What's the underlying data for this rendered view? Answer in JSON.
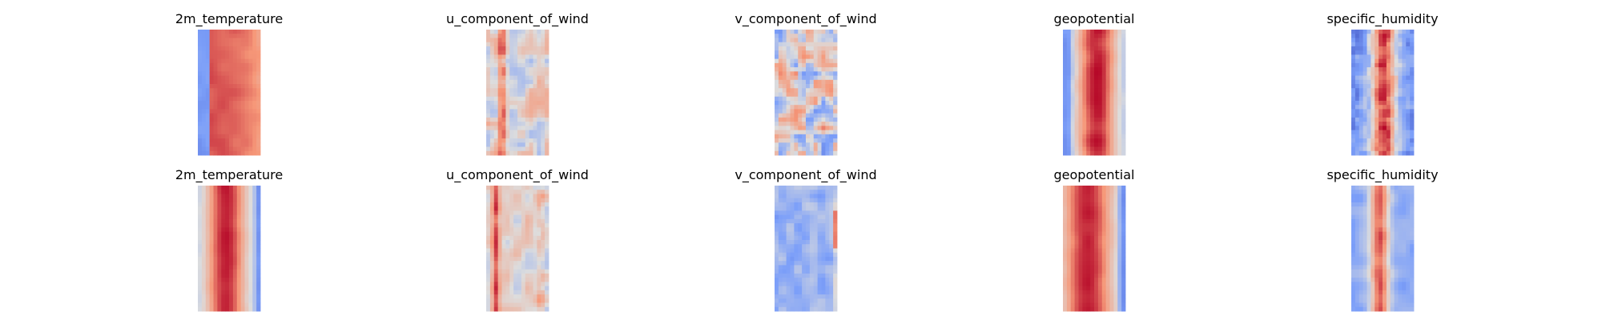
{
  "chart_data": {
    "type": "heatmap",
    "colormap": "coolwarm",
    "axes": "off",
    "grid": false,
    "legend": "none",
    "layout": {
      "rows": 2,
      "cols": 5
    },
    "panels": [
      {
        "title": "2m_temperature",
        "row": 0,
        "col": 0
      },
      {
        "title": "u_component_of_wind",
        "row": 0,
        "col": 1
      },
      {
        "title": "v_component_of_wind",
        "row": 0,
        "col": 2
      },
      {
        "title": "geopotential",
        "row": 0,
        "col": 3
      },
      {
        "title": "specific_humidity",
        "row": 0,
        "col": 4
      },
      {
        "title": "2m_temperature",
        "row": 1,
        "col": 0
      },
      {
        "title": "u_component_of_wind",
        "row": 1,
        "col": 1
      },
      {
        "title": "v_component_of_wind",
        "row": 1,
        "col": 2
      },
      {
        "title": "geopotential",
        "row": 1,
        "col": 3
      },
      {
        "title": "specific_humidity",
        "row": 1,
        "col": 4
      }
    ]
  }
}
